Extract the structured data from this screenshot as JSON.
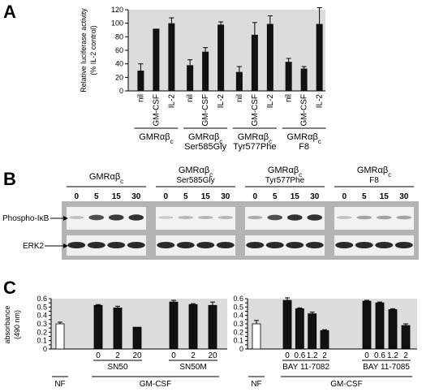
{
  "panels": {
    "a": "A",
    "b": "B",
    "c": "C"
  },
  "chart_data": [
    {
      "type": "bar",
      "panel": "A",
      "ylabel_line1": "Relative luciferase activity",
      "ylabel_line2": "(% IL-2 control)",
      "ylim": [
        0,
        120
      ],
      "yticks": [
        0,
        20,
        40,
        60,
        80,
        100,
        120
      ],
      "bar_color": "#111111",
      "groups": [
        {
          "line1": "GMRαβ",
          "sub": "c",
          "line2": "",
          "categories": [
            "nil",
            "GM-CSF",
            "IL-2"
          ],
          "values": [
            30,
            92,
            100
          ],
          "errors": [
            10,
            0,
            8
          ]
        },
        {
          "line1": "GMRαβ",
          "sub": "c",
          "line2": "Ser585Gly",
          "categories": [
            "nil",
            "GM-CSF",
            "IL-2"
          ],
          "values": [
            38,
            58,
            98
          ],
          "errors": [
            8,
            6,
            4
          ]
        },
        {
          "line1": "GMRαβ",
          "sub": "c",
          "line2": "Tyr577Phe",
          "categories": [
            "nil",
            "GM-CSF",
            "IL-2"
          ],
          "values": [
            28,
            83,
            99
          ],
          "errors": [
            8,
            18,
            12
          ]
        },
        {
          "line1": "GMRαβ",
          "sub": "c",
          "line2": "F8",
          "categories": [
            "nil",
            "GM-CSF",
            "IL-2"
          ],
          "values": [
            43,
            33,
            99
          ],
          "errors": [
            5,
            3,
            24
          ]
        }
      ]
    },
    {
      "type": "bar",
      "panel": "C-left",
      "ylabel_line1": "absorbance",
      "ylabel_line2": "(490 nm)",
      "ylim": [
        0,
        0.6
      ],
      "yticks": [
        0,
        0.05,
        0.1,
        0.15,
        0.2,
        0.25,
        0.3,
        0.35,
        0.4,
        0.45,
        0.5,
        0.55,
        0.6
      ],
      "ytick_labels": [
        "0",
        "0.1",
        "0.2",
        "0.3",
        "0.4",
        "0.5",
        "0.6"
      ],
      "bar_color": "#111111",
      "nf": {
        "label": "NF",
        "value": 0.3,
        "error": 0.02,
        "color": "#ffffff"
      },
      "groups": [
        {
          "label": "SN50",
          "categories": [
            "0",
            "2",
            "20"
          ],
          "values": [
            0.52,
            0.49,
            0.26
          ],
          "errors": [
            0.01,
            0.02,
            0.0
          ]
        },
        {
          "label": "SN50M",
          "categories": [
            "0",
            "2",
            "20"
          ],
          "values": [
            0.56,
            0.53,
            0.52
          ],
          "errors": [
            0.02,
            0.01,
            0.04
          ]
        }
      ],
      "treatment": "GM-CSF"
    },
    {
      "type": "bar",
      "panel": "C-right",
      "ylim": [
        0,
        0.6
      ],
      "yticks": [
        0,
        0.05,
        0.1,
        0.15,
        0.2,
        0.25,
        0.3,
        0.35,
        0.4,
        0.45,
        0.5,
        0.55,
        0.6
      ],
      "ytick_labels": [
        "0",
        "0.1",
        "0.2",
        "0.3",
        "0.4",
        "0.5",
        "0.6"
      ],
      "bar_color": "#111111",
      "nf": {
        "label": "NF",
        "value": 0.3,
        "error": 0.04,
        "color": "#ffffff"
      },
      "groups": [
        {
          "label": "BAY 11-7082",
          "categories": [
            "0",
            "0.6",
            "1.2",
            "2"
          ],
          "values": [
            0.58,
            0.48,
            0.42,
            0.22
          ],
          "errors": [
            0.03,
            0.01,
            0.02,
            0.01
          ]
        },
        {
          "label": "BAY 11-7085",
          "categories": [
            "0",
            "0.6",
            "1.2",
            "2"
          ],
          "values": [
            0.57,
            0.55,
            0.47,
            0.28
          ],
          "errors": [
            0.01,
            0.01,
            0.01,
            0.02
          ]
        }
      ],
      "treatment": "GM-CSF"
    }
  ],
  "blot": {
    "constructs": [
      {
        "line1": "GMRαβ",
        "sub": "c",
        "line2": ""
      },
      {
        "line1": "GMRαβ",
        "sub": "c",
        "line2": "Ser585Gly"
      },
      {
        "line1": "GMRαβ",
        "sub": "c",
        "line2": "Tyr577Phe"
      },
      {
        "line1": "GMRαβ",
        "sub": "c",
        "line2": "F8"
      }
    ],
    "time_points": [
      "0",
      "5",
      "15",
      "30"
    ],
    "rows": [
      "Phospho-IκB",
      "ERK2"
    ],
    "phospho_intensity": [
      [
        0.15,
        0.75,
        0.85,
        0.9
      ],
      [
        0.1,
        0.2,
        0.2,
        0.2
      ],
      [
        0.25,
        0.75,
        0.9,
        0.9
      ],
      [
        0.15,
        0.3,
        0.3,
        0.3
      ]
    ]
  }
}
